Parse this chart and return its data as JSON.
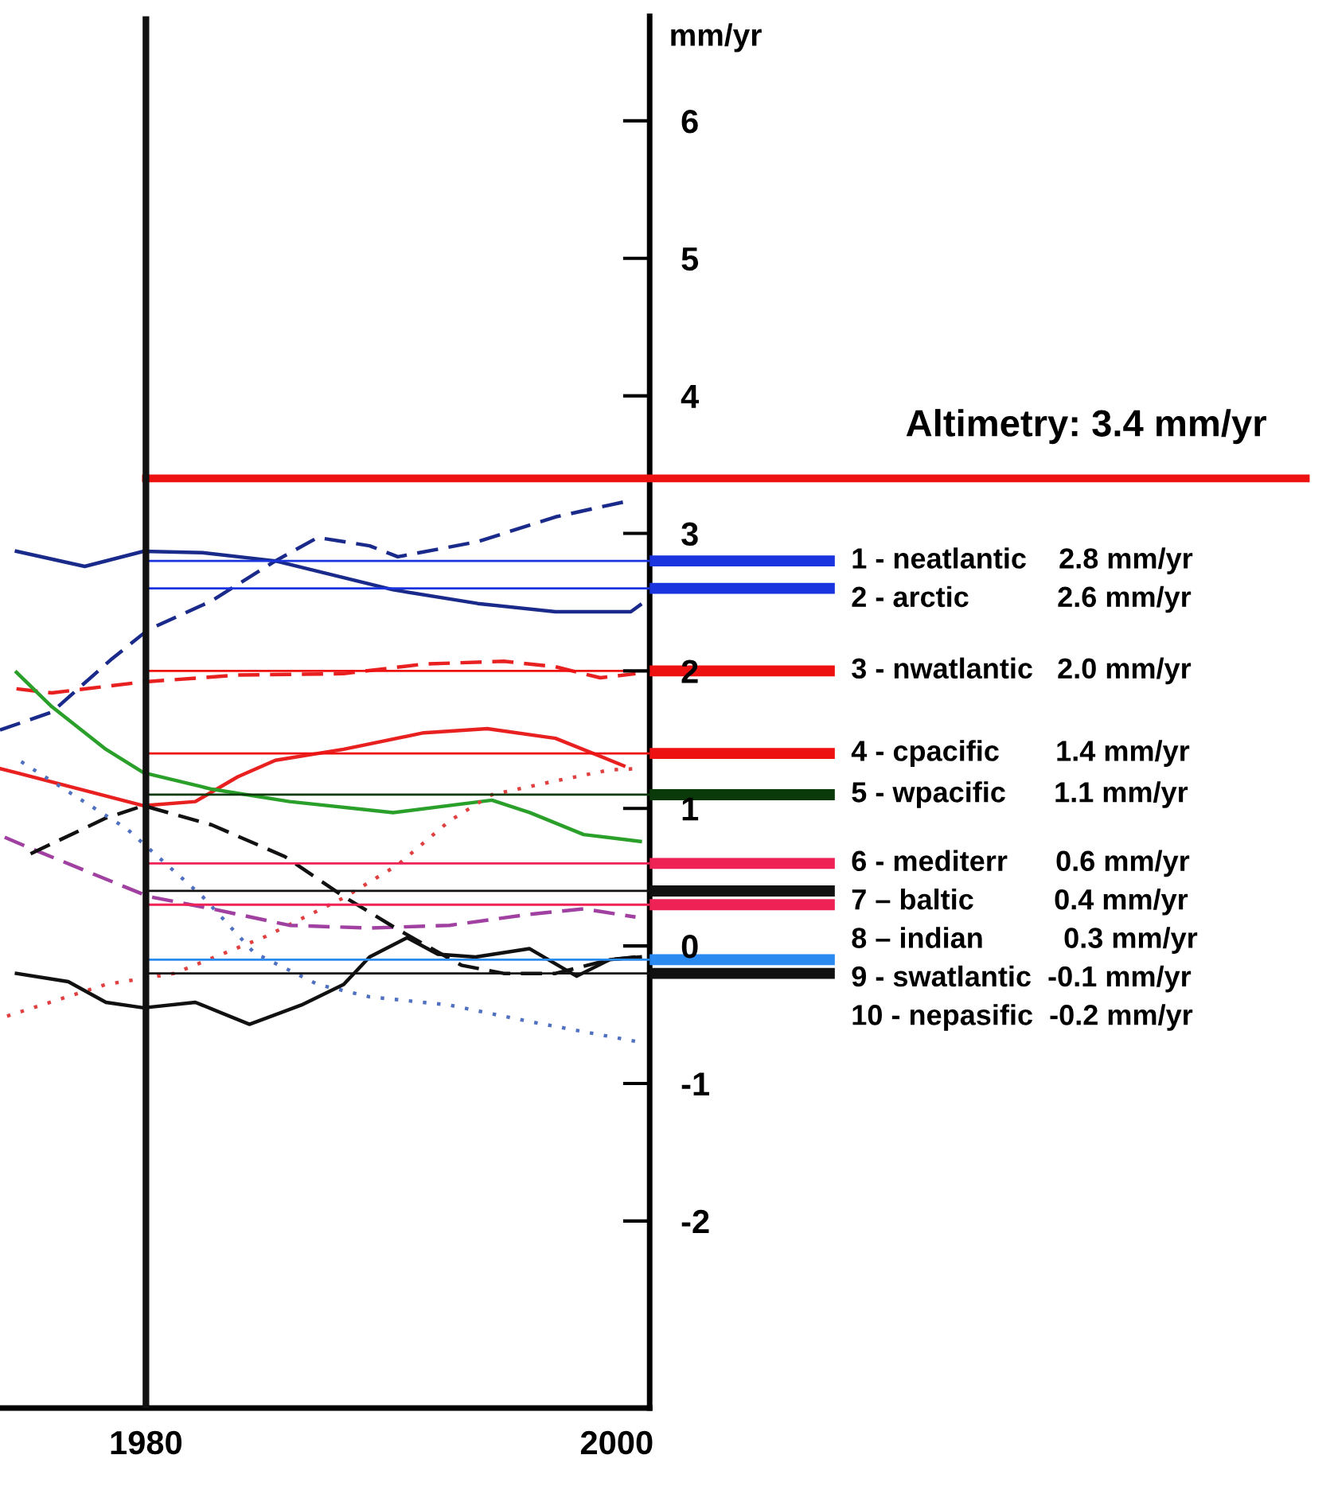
{
  "chart_data": {
    "type": "line",
    "ylabel": "mm/yr",
    "xlim": [
      1973.8,
      2001.4
    ],
    "xticks": [
      1980,
      2000
    ],
    "ylim": [
      -3.36,
      6.76
    ],
    "yticks": [
      6,
      5,
      4,
      3,
      2,
      1,
      0,
      -1,
      -2
    ],
    "grid": false,
    "series": [
      {
        "color": "#1a2a8a",
        "line_style": "solid",
        "x": [
          1974.5,
          1977.4,
          1979.9,
          1982.4,
          1985.5,
          1990.5,
          1994.1,
          1997.4,
          2000.6,
          2001.0
        ],
        "values": [
          2.87,
          2.76,
          2.87,
          2.86,
          2.8,
          2.59,
          2.49,
          2.43,
          2.43,
          2.48
        ]
      },
      {
        "color": "#1a2a8a",
        "line_style": "dashed",
        "x": [
          1973.8,
          1976.0,
          1978.5,
          1980.1,
          1982.8,
          1985.5,
          1987.3,
          1989.5,
          1990.7,
          1994.1,
          1997.4,
          2000.6
        ],
        "values": [
          1.57,
          1.7,
          2.08,
          2.3,
          2.51,
          2.8,
          2.97,
          2.91,
          2.83,
          2.94,
          3.12,
          3.24
        ]
      },
      {
        "color": "#e82020",
        "line_style": "dashed",
        "x": [
          1974.5,
          1976.0,
          1979.9,
          1983.9,
          1988.4,
          1991.8,
          1995.2,
          1997.4,
          1999.3,
          2000.8
        ],
        "values": [
          1.87,
          1.84,
          1.92,
          1.97,
          1.98,
          2.05,
          2.07,
          2.03,
          1.95,
          1.98
        ]
      },
      {
        "color": "#e82020",
        "line_style": "solid",
        "x": [
          1973.8,
          1974.5,
          1977.2,
          1979.9,
          1982.1,
          1983.9,
          1985.5,
          1988.4,
          1991.8,
          1994.5,
          1997.4,
          2000.3
        ],
        "values": [
          1.29,
          1.26,
          1.14,
          1.02,
          1.05,
          1.23,
          1.35,
          1.43,
          1.55,
          1.58,
          1.51,
          1.31
        ]
      },
      {
        "color": "#2aa02a",
        "line_style": "solid",
        "x": [
          1974.5,
          1976.0,
          1978.3,
          1979.9,
          1982.8,
          1986.1,
          1990.5,
          1994.7,
          1996.3,
          1998.6,
          2001.0
        ],
        "values": [
          1.99,
          1.74,
          1.43,
          1.26,
          1.14,
          1.05,
          0.97,
          1.06,
          0.97,
          0.81,
          0.76
        ]
      },
      {
        "color": "#e04040",
        "line_style": "dotted",
        "x": [
          1974.1,
          1978.3,
          1981.2,
          1985.1,
          1988.4,
          1990.7,
          1992.9,
          1994.7,
          1997.4,
          1999.7,
          2001.0
        ],
        "values": [
          -0.51,
          -0.28,
          -0.2,
          0.07,
          0.35,
          0.59,
          0.91,
          1.1,
          1.2,
          1.28,
          1.29
        ]
      },
      {
        "color": "#a040a0",
        "line_style": "dashed",
        "x": [
          1974.0,
          1975.1,
          1980.1,
          1982.8,
          1986.1,
          1989.5,
          1992.9,
          1996.3,
          1998.6,
          2000.8
        ],
        "values": [
          0.79,
          0.71,
          0.36,
          0.27,
          0.15,
          0.13,
          0.15,
          0.23,
          0.27,
          0.21
        ]
      },
      {
        "color": "#111111",
        "line_style": "dashed",
        "x": [
          1975.1,
          1978.3,
          1979.9,
          1982.8,
          1985.9,
          1988.4,
          1990.7,
          1993.4,
          1995.2,
          1997.4,
          1999.7,
          2000.8
        ],
        "values": [
          0.67,
          0.93,
          1.02,
          0.88,
          0.65,
          0.36,
          0.12,
          -0.14,
          -0.2,
          -0.2,
          -0.1,
          -0.08
        ]
      },
      {
        "color": "#5070c0",
        "line_style": "dotted",
        "x": [
          1974.7,
          1979.2,
          1980.7,
          1982.4,
          1984.6,
          1987.3,
          1989.5,
          1992.9,
          1996.3,
          1998.8,
          2001.0
        ],
        "values": [
          1.34,
          0.85,
          0.62,
          0.36,
          -0.05,
          -0.28,
          -0.37,
          -0.43,
          -0.55,
          -0.63,
          -0.7
        ]
      },
      {
        "color": "#111111",
        "line_style": "solid",
        "x": [
          1974.5,
          1976.7,
          1978.3,
          1979.9,
          1982.1,
          1984.4,
          1986.6,
          1988.4,
          1989.5,
          1991.1,
          1992.4,
          1994.0,
          1996.3,
          1998.3,
          1999.7,
          2001.0
        ],
        "values": [
          -0.2,
          -0.26,
          -0.41,
          -0.45,
          -0.41,
          -0.57,
          -0.43,
          -0.28,
          -0.08,
          0.06,
          -0.06,
          -0.08,
          -0.02,
          -0.22,
          -0.1,
          -0.08
        ]
      }
    ],
    "ref_lines": [
      {
        "axis": "y",
        "value": 3.4,
        "label": "Altimetry: 3.4 mm/yr",
        "color": "#ee1111"
      },
      {
        "axis": "y",
        "value": 2.8,
        "label": "1 - neatlantic    2.8 mm/yr",
        "color": "#1a35e0"
      },
      {
        "axis": "y",
        "value": 2.6,
        "label": "2 - arctic           2.6 mm/yr",
        "color": "#1a35e0"
      },
      {
        "axis": "y",
        "value": 2.0,
        "label": "3 - nwatlantic   2.0 mm/yr",
        "color": "#ee1111"
      },
      {
        "axis": "y",
        "value": 1.4,
        "label": "4 - cpacific       1.4 mm/yr",
        "color": "#ee1111"
      },
      {
        "axis": "y",
        "value": 1.1,
        "label": "5 - wpacific      1.1 mm/yr",
        "color": "#0a3a0a"
      },
      {
        "axis": "y",
        "value": 0.6,
        "label": "6 - mediterr      0.6 mm/yr",
        "color": "#ee2255"
      },
      {
        "axis": "y",
        "value": 0.4,
        "label": "7 – baltic          0.4 mm/yr",
        "color": "#111111"
      },
      {
        "axis": "y",
        "value": 0.3,
        "label": "8 – indian          0.3 mm/yr",
        "color": "#ee2255"
      },
      {
        "axis": "y",
        "value": -0.1,
        "label": "9 - swatlantic  -0.1 mm/yr",
        "color": "#2a8af0"
      },
      {
        "axis": "y",
        "value": -0.2,
        "label": "10 - nepasific  -0.2 mm/yr",
        "color": "#111111"
      },
      {
        "axis": "x",
        "value": 1980,
        "color": "#111111"
      }
    ]
  }
}
